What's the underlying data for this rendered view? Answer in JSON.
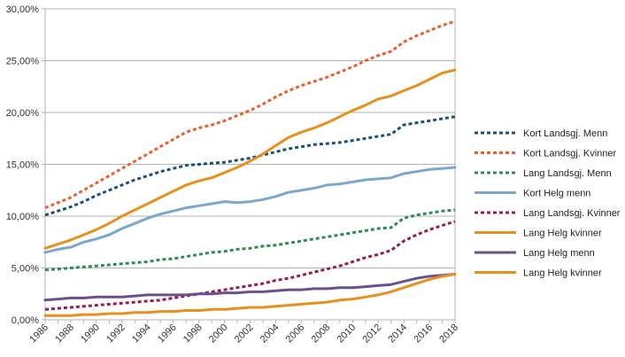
{
  "chart_data": {
    "type": "line",
    "title": "",
    "xlabel": "",
    "ylabel": "",
    "ylim": [
      0,
      30
    ],
    "y_ticks": [
      "0,00%",
      "5,00%",
      "10,00%",
      "15,00%",
      "20,00%",
      "25,00%",
      "30,00%"
    ],
    "x": [
      1986,
      1987,
      1988,
      1989,
      1990,
      1991,
      1992,
      1993,
      1994,
      1995,
      1996,
      1997,
      1998,
      1999,
      2000,
      2001,
      2002,
      2003,
      2004,
      2005,
      2006,
      2007,
      2008,
      2009,
      2010,
      2011,
      2012,
      2013,
      2014,
      2015,
      2016,
      2017,
      2018
    ],
    "x_ticks": [
      "1986",
      "1988",
      "1990",
      "1992",
      "1994",
      "1996",
      "1998",
      "2000",
      "2002",
      "2004",
      "2006",
      "2008",
      "2010",
      "2012",
      "2014",
      "2016",
      "2018"
    ],
    "grid": true,
    "legend_position": "right",
    "series": [
      {
        "name": "Kort Landsgj. Menn",
        "color": "#1f4e79",
        "dashed": true,
        "values": [
          10.1,
          10.5,
          10.9,
          11.4,
          12.0,
          12.5,
          13.0,
          13.5,
          13.9,
          14.3,
          14.6,
          14.9,
          15.0,
          15.1,
          15.2,
          15.4,
          15.6,
          15.9,
          16.2,
          16.5,
          16.7,
          16.9,
          17.0,
          17.1,
          17.3,
          17.5,
          17.7,
          17.9,
          18.8,
          19.0,
          19.2,
          19.4,
          19.6
        ]
      },
      {
        "name": "Kort Landsgj. Kvinner",
        "color": "#e8612c",
        "dashed": true,
        "values": [
          10.8,
          11.3,
          11.8,
          12.5,
          13.2,
          13.9,
          14.6,
          15.3,
          16.0,
          16.7,
          17.4,
          18.1,
          18.5,
          18.8,
          19.2,
          19.7,
          20.2,
          20.8,
          21.5,
          22.1,
          22.6,
          23.0,
          23.4,
          23.9,
          24.4,
          25.0,
          25.5,
          25.9,
          26.8,
          27.4,
          27.9,
          28.4,
          28.8
        ]
      },
      {
        "name": "Lang Landsgj. Menn",
        "color": "#2e8b57",
        "dashed": true,
        "values": [
          4.8,
          4.9,
          5.0,
          5.1,
          5.2,
          5.3,
          5.4,
          5.5,
          5.6,
          5.8,
          5.9,
          6.1,
          6.3,
          6.5,
          6.6,
          6.8,
          6.9,
          7.1,
          7.2,
          7.4,
          7.6,
          7.8,
          8.0,
          8.2,
          8.4,
          8.6,
          8.8,
          8.9,
          9.8,
          10.1,
          10.3,
          10.5,
          10.6
        ]
      },
      {
        "name": "Kort Helg menn",
        "color": "#7ba7cc",
        "dashed": false,
        "values": [
          6.5,
          6.8,
          7.0,
          7.5,
          7.8,
          8.2,
          8.8,
          9.3,
          9.8,
          10.2,
          10.5,
          10.8,
          11.0,
          11.2,
          11.4,
          11.3,
          11.4,
          11.6,
          11.9,
          12.3,
          12.5,
          12.7,
          13.0,
          13.1,
          13.3,
          13.5,
          13.6,
          13.7,
          14.1,
          14.3,
          14.5,
          14.6,
          14.7
        ]
      },
      {
        "name": "Lang Landsgj. Kvinner",
        "color": "#9b1b4f",
        "dashed": true,
        "values": [
          1.0,
          1.1,
          1.2,
          1.3,
          1.4,
          1.5,
          1.6,
          1.7,
          1.8,
          1.9,
          2.1,
          2.3,
          2.5,
          2.7,
          2.9,
          3.1,
          3.3,
          3.5,
          3.8,
          4.0,
          4.3,
          4.6,
          4.9,
          5.2,
          5.6,
          6.0,
          6.3,
          6.7,
          7.6,
          8.2,
          8.7,
          9.1,
          9.5
        ]
      },
      {
        "name": "Lang Helg kvinner",
        "color": "#e8901e",
        "dashed": false,
        "values": [
          6.9,
          7.3,
          7.7,
          8.2,
          8.7,
          9.3,
          10.0,
          10.6,
          11.2,
          11.8,
          12.4,
          13.0,
          13.4,
          13.7,
          14.2,
          14.7,
          15.3,
          16.0,
          16.8,
          17.6,
          18.1,
          18.5,
          19.0,
          19.6,
          20.2,
          20.7,
          21.3,
          21.6,
          22.1,
          22.6,
          23.2,
          23.8,
          24.1
        ]
      },
      {
        "name": "Lang Helg menn",
        "color": "#6b4f8f",
        "dashed": false,
        "values": [
          1.9,
          2.0,
          2.1,
          2.1,
          2.2,
          2.2,
          2.2,
          2.3,
          2.4,
          2.4,
          2.4,
          2.4,
          2.5,
          2.5,
          2.6,
          2.6,
          2.7,
          2.7,
          2.8,
          2.9,
          2.9,
          3.0,
          3.0,
          3.1,
          3.1,
          3.2,
          3.3,
          3.4,
          3.7,
          4.0,
          4.2,
          4.3,
          4.4
        ]
      },
      {
        "name": "Lang Helg kvinner",
        "color": "#e8901e",
        "dashed": false,
        "values": [
          0.4,
          0.4,
          0.4,
          0.5,
          0.5,
          0.6,
          0.6,
          0.7,
          0.7,
          0.8,
          0.8,
          0.9,
          0.9,
          1.0,
          1.0,
          1.1,
          1.2,
          1.2,
          1.3,
          1.4,
          1.5,
          1.6,
          1.7,
          1.9,
          2.0,
          2.2,
          2.4,
          2.7,
          3.1,
          3.5,
          3.9,
          4.2,
          4.4
        ]
      }
    ]
  }
}
